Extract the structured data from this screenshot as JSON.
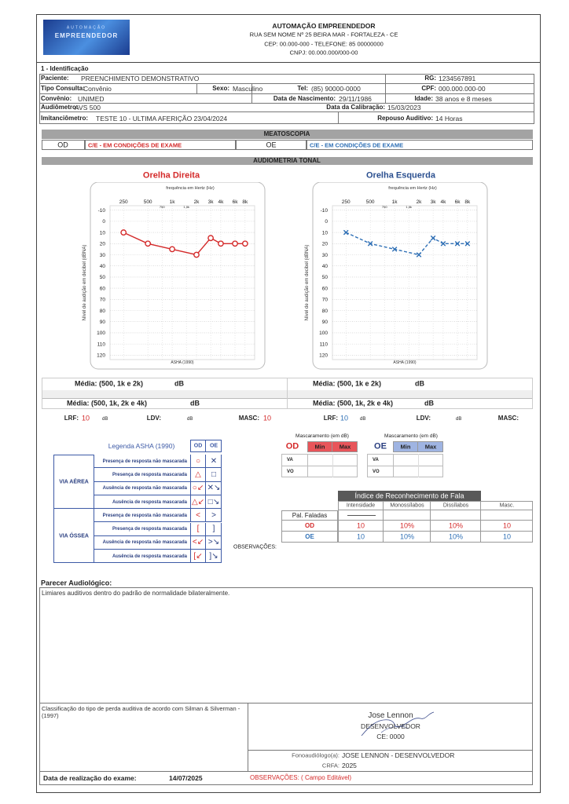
{
  "header": {
    "logo_top": "AUTOMAÇÃO",
    "logo_main": "EMPREENDEDOR",
    "company": "AUTOMAÇÃO EMPREENDEDOR",
    "address": "RUA SEM NOME Nº 25  BEIRA MAR - FORTALEZA - CE",
    "contact": "CEP: 00.000-000 - TELEFONE: 85 00000000",
    "cnpj": "CNPJ: 00.000.000/000-00"
  },
  "identification": {
    "title": "1 - Identificação",
    "patient_label": "Paciente:",
    "patient": "PREENCHIMENTO DEMONSTRATIVO",
    "rg_label": "RG:",
    "rg": "1234567891",
    "consult_label": "Tipo Consulta:",
    "consult": "Convênio",
    "sex_label": "Sexo:",
    "sex": "Masculino",
    "tel_label": "Tel:",
    "tel": "(85) 90000-0000",
    "cpf_label": "CPF:",
    "cpf": "000.000.000-00",
    "insurance_label": "Convênio:",
    "insurance": "UNIMED",
    "birth_label": "Data de Nascimento:",
    "birth": "29/11/1986",
    "age_label": "Idade:",
    "age": "38 anos e 8 meses",
    "audiometer_label": "Audiômetro:",
    "audiometer": "AVS 500",
    "calibration_label": "Data da Calibração:",
    "calibration": "15/03/2023",
    "imittance_label": "Imitanciômetro:",
    "imittance": "TESTE 10 - ULTIMA AFERIÇÃO 23/04/2024",
    "rest_label": "Repouso Auditivo:",
    "rest": "14 Horas"
  },
  "meatoscopy": {
    "title": "MEATOSCOPIA",
    "od": "OD",
    "od_result": "C/E - EM CONDIÇÕES DE EXAME",
    "oe": "OE",
    "oe_result": "C/E - EM CONDIÇÕES DE EXAME"
  },
  "audiometry_title": "AUDIOMETRIA TONAL",
  "chart_data": [
    {
      "type": "line",
      "title": "Orelha Direita",
      "title_color": "#d42a2a",
      "x_label": "frequência em Hertz (Hz)",
      "y_label": "Nível de audição em decibel (dBNA)",
      "footnote": "ASHA (1990)",
      "x_scale": "log",
      "y_inverted": true,
      "grid": true,
      "xlim": [
        170,
        10500
      ],
      "ylim": [
        -14,
        124
      ],
      "xticks": [
        250,
        500,
        {
          "value": 1000,
          "label": "1k"
        },
        {
          "value": 2000,
          "label": "2k"
        },
        {
          "value": 3000,
          "label": "3k"
        },
        {
          "value": 4000,
          "label": "4k"
        },
        {
          "value": 6000,
          "label": "6k"
        },
        {
          "value": 8000,
          "label": "8k"
        }
      ],
      "xticks_minor": [
        750,
        {
          "value": 1500,
          "label": "1,5k"
        }
      ],
      "yticks": [
        -10,
        0,
        10,
        20,
        30,
        40,
        50,
        60,
        70,
        80,
        90,
        100,
        110,
        120
      ],
      "x": [
        250,
        500,
        1000,
        2000,
        3000,
        4000,
        6000,
        8000
      ],
      "series": [
        {
          "color": "#d42a2a",
          "marker": "circle",
          "dash": "solid",
          "values": [
            10,
            20,
            25,
            30,
            15,
            20,
            20,
            20
          ]
        }
      ]
    },
    {
      "type": "line",
      "title": "Orelha Esquerda",
      "title_color": "#2a4f8f",
      "x_label": "frequência em Hertz (Hz)",
      "y_label": "Nível de audição em decibel (dBNA)",
      "footnote": "ASHA (1990)",
      "x_scale": "log",
      "y_inverted": true,
      "grid": true,
      "xlim": [
        170,
        10500
      ],
      "ylim": [
        -14,
        124
      ],
      "xticks": [
        250,
        500,
        {
          "value": 1000,
          "label": "1k"
        },
        {
          "value": 2000,
          "label": "2k"
        },
        {
          "value": 3000,
          "label": "3k"
        },
        {
          "value": 4000,
          "label": "4k"
        },
        {
          "value": 6000,
          "label": "6k"
        },
        {
          "value": 8000,
          "label": "8k"
        }
      ],
      "xticks_minor": [
        750,
        {
          "value": 1500,
          "label": "1,5k"
        }
      ],
      "yticks": [
        -10,
        0,
        10,
        20,
        30,
        40,
        50,
        60,
        70,
        80,
        90,
        100,
        110,
        120
      ],
      "x": [
        250,
        500,
        1000,
        2000,
        3000,
        4000,
        6000,
        8000
      ],
      "series": [
        {
          "color": "#2e6fb5",
          "marker": "cross",
          "dash": "dashed",
          "values": [
            10,
            20,
            25,
            30,
            15,
            20,
            20,
            20
          ]
        }
      ]
    }
  ],
  "averages": {
    "od": {
      "pta3": "Média: (500, 1k e 2k)",
      "pta3_unit": "dB",
      "pta4": "Média: (500, 1k, 2k e 4k)",
      "pta4_unit": "dB",
      "lrf_label": "LRF:",
      "lrf": 10,
      "lrf_unit": "dB",
      "ldv_label": "LDV:",
      "ldv_unit": "dB",
      "masc_label": "MASC:",
      "masc": 10
    },
    "oe": {
      "pta3": "Média: (500, 1k e 2k)",
      "pta3_unit": "dB",
      "pta4": "Média: (500, 1k, 2k e 4k)",
      "pta4_unit": "dB",
      "lrf_label": "LRF:",
      "lrf": 10,
      "lrf_unit": "dB",
      "ldv_label": "LDV:",
      "ldv_unit": "dB",
      "masc_label": "MASC:"
    }
  },
  "legend": {
    "title": "Legenda ASHA (1990)",
    "od": "OD",
    "oe": "OE",
    "groups": [
      {
        "name": "VIA AÉREA",
        "rows": [
          {
            "label": "Presença de resposta não mascarada",
            "od": "○",
            "oe": "✕"
          },
          {
            "label": "Presença de resposta mascarada",
            "od": "△",
            "oe": "□"
          },
          {
            "label": "Ausência de resposta não mascarada",
            "od": "○↙",
            "oe": "✕↘"
          },
          {
            "label": "Ausência de resposta mascarada",
            "od": "△↙",
            "oe": "□↘"
          }
        ]
      },
      {
        "name": "VIA ÓSSEA",
        "rows": [
          {
            "label": "Presença de resposta não mascarada",
            "od": "<",
            "oe": ">"
          },
          {
            "label": "Presença de resposta mascarada",
            "od": "[",
            "oe": "]"
          },
          {
            "label": "Ausência de resposta não mascarada",
            "od": "<↙",
            "oe": ">↘"
          },
          {
            "label": "Ausência de resposta mascarada",
            "od": "[↙",
            "oe": "]↘"
          }
        ]
      }
    ]
  },
  "masking": {
    "od": {
      "title": "Mascaramento (em dB)",
      "ear": "OD",
      "min": "Min",
      "max": "Max",
      "va": "VA",
      "vo": "VO"
    },
    "oe": {
      "title": "Mascaramento (em dB)",
      "ear": "OE",
      "min": "Min",
      "max": "Max",
      "va": "VA",
      "vo": "VO"
    }
  },
  "speech": {
    "title": "Índice de Reconhecimento de Fala",
    "headers": [
      "Intensidade",
      "Monossílabos",
      "Dissílabos",
      "Masc."
    ],
    "spoken": "Pal. Faladas",
    "rows": [
      {
        "ear": "OD",
        "values": [
          10,
          "10%",
          "10%",
          10
        ]
      },
      {
        "ear": "OE",
        "values": [
          10,
          "10%",
          "10%",
          10
        ]
      }
    ]
  },
  "observations_label": "OBSERVAÇÕES:",
  "report": {
    "title": "Parecer Audiológico:",
    "text": "Limiares auditivos dentro do padrão de normalidade bilateralmente.",
    "classification": "Classificação do tipo de perda auditiva de acordo com Silman & Silverman - (1997)",
    "signature": "Jose Lennon",
    "role": "DESENVOLVEDOR",
    "council": "CE: 0000",
    "professional_label": "Fonoaudiólogo(a):",
    "professional": "JOSE LENNON - DESENVOLVEDOR",
    "crfa_label": "CRFA:",
    "crfa": "2025",
    "date_label": "Data de realização do exame:",
    "date": "14/07/2025",
    "notes": "OBSERVAÇÕES: ( Campo Editável)"
  }
}
